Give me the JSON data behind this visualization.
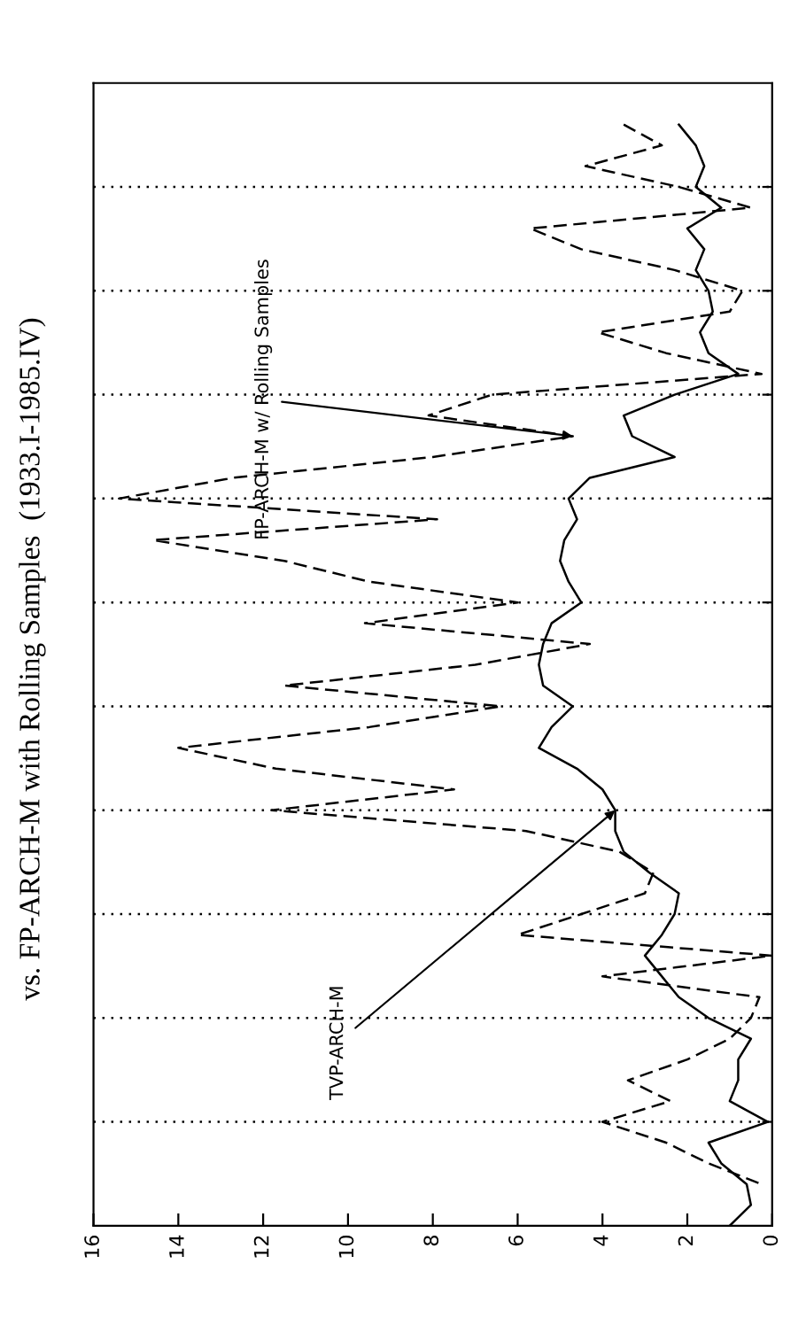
{
  "chart_data": {
    "type": "line",
    "title": "vs. FP-ARCH-M with Rolling Samples  (1933.I-1985.IV)",
    "orientation": "horizontal",
    "xlim": [
      16,
      0
    ],
    "xticks": [
      16,
      14,
      12,
      10,
      8,
      6,
      4,
      2,
      0
    ],
    "categories": [
      null,
      null,
      null,
      null,
      null,
      null,
      null,
      null,
      null,
      null,
      null,
      null,
      null,
      null,
      null,
      null,
      null,
      null,
      null,
      null,
      null,
      null,
      null,
      null,
      null,
      null,
      null,
      null,
      null,
      null,
      null,
      null,
      null,
      null,
      null,
      null,
      null,
      null,
      null,
      null,
      null,
      null,
      null,
      null,
      null,
      null,
      null,
      null,
      null,
      null,
      null,
      null,
      null,
      null,
      null,
      null
    ],
    "grid": "y",
    "marker": "none",
    "series": [
      {
        "name": "TVP-ARCH-M",
        "color": "#000000",
        "line_style": "solid",
        "values": [
          null,
          null,
          2.2,
          1.8,
          1.6,
          1.8,
          1.2,
          2.0,
          1.6,
          1.8,
          1.5,
          1.4,
          1.7,
          1.5,
          0.8,
          2.3,
          3.5,
          3.3,
          2.3,
          4.3,
          4.8,
          4.6,
          4.9,
          5.0,
          4.8,
          4.5,
          5.2,
          5.4,
          5.5,
          5.4,
          4.7,
          5.2,
          5.5,
          4.6,
          4.0,
          3.7,
          3.7,
          3.5,
          2.9,
          2.2,
          2.3,
          2.6,
          3.0,
          2.6,
          2.2,
          1.5,
          0.5,
          0.8,
          0.8,
          1.0,
          0.1,
          1.5,
          1.2,
          0.6,
          0.5,
          1.0
        ]
      },
      {
        "name": "FP-ARCH-M w/ Rolling Samples",
        "color": "#000000",
        "line_style": "dashed",
        "values": [
          null,
          null,
          3.5,
          2.6,
          4.4,
          2.2,
          0.5,
          5.7,
          4.5,
          2.3,
          0.7,
          1.0,
          4.1,
          2.5,
          0.25,
          6.6,
          8.1,
          4.7,
          8.0,
          12.7,
          15.4,
          7.9,
          14.6,
          11.5,
          9.5,
          6.0,
          9.6,
          4.3,
          7.0,
          11.5,
          6.4,
          9.5,
          14.0,
          11.7,
          7.5,
          11.8,
          5.8,
          3.6,
          2.8,
          3.0,
          4.5,
          6.0,
          0,
          4.0,
          0.3,
          0.5,
          1.0,
          2.0,
          3.4,
          2.4,
          4.0,
          2.5,
          1.5,
          0.25,
          null,
          null
        ]
      }
    ]
  }
}
